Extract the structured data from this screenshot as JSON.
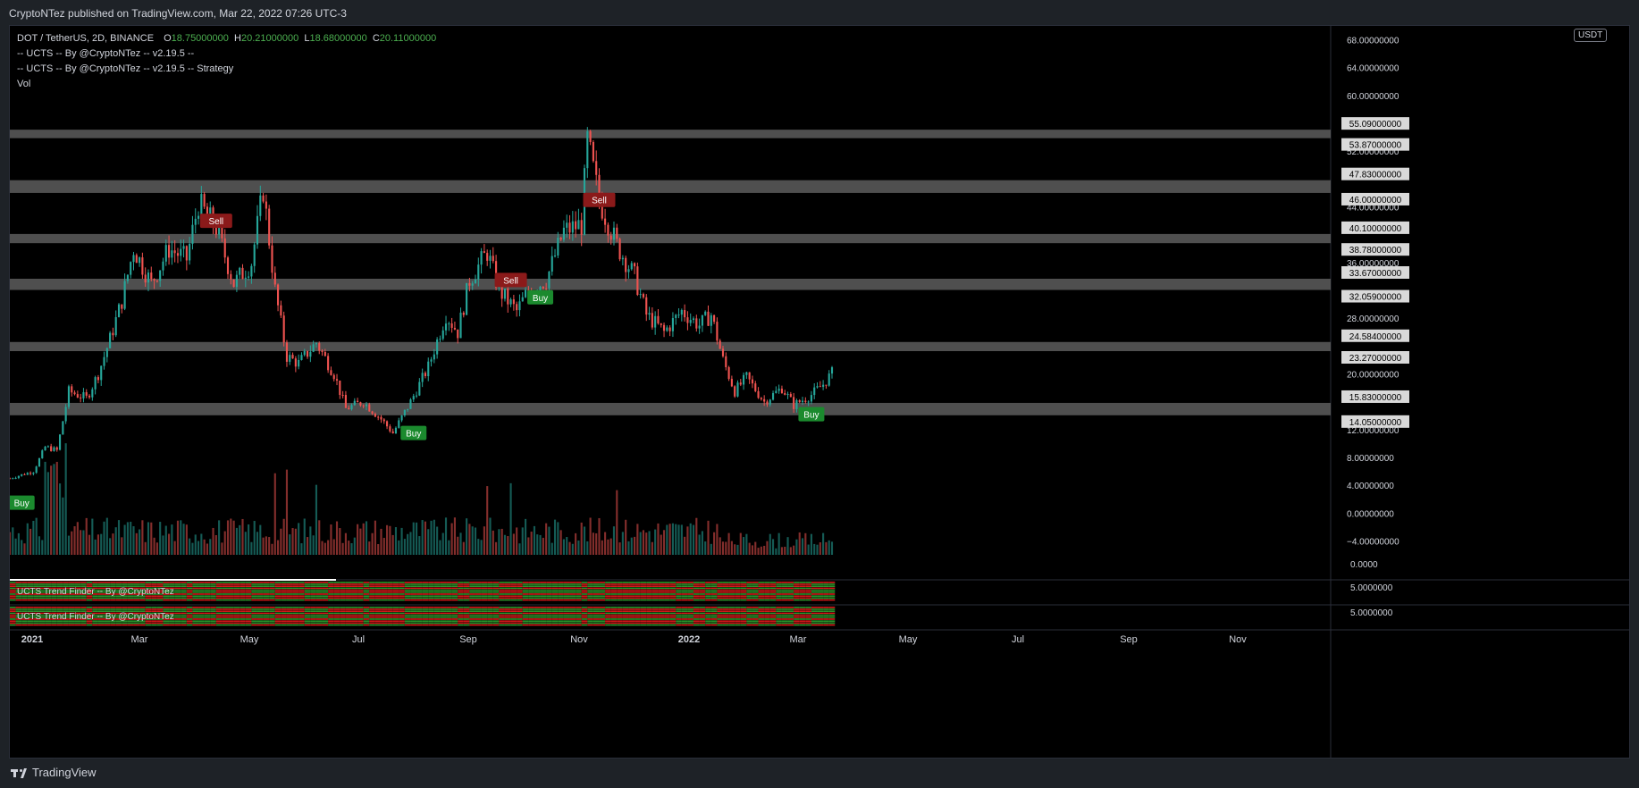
{
  "published_by": "CryptoNTez published on TradingView.com, Mar 22, 2022 07:26 UTC-3",
  "brand": "TradingView",
  "legend": {
    "symbol": "DOT / TetherUS, 2D, BINANCE",
    "o_label": "O",
    "o_value": "18.75000000",
    "h_label": "H",
    "h_value": "20.21000000",
    "l_label": "L",
    "l_value": "18.68000000",
    "c_label": "C",
    "c_value": "20.11000000",
    "indicator1": "-- UCTS -- By @CryptoNTez -- v2.19.5 --",
    "indicator2": "-- UCTS -- By @CryptoNTez -- v2.19.5 -- Strategy",
    "indicator3": "Vol"
  },
  "currency_badge": "USDT",
  "pane_labels": [
    "UCTS Trend Finder -- By @CryptoNTez",
    "UCTS Trend Finder -- By @CryptoNTez"
  ],
  "colors": {
    "up": "#26a69a",
    "down": "#ef5350",
    "zone": "#5d5d5d",
    "buy": "#1b8a2e",
    "sell": "#8b1a1a",
    "trend_green": "#2e9e2e",
    "trend_red": "#e01b1b"
  },
  "chart_data": {
    "type": "candlestick",
    "ylim": [
      -6,
      70
    ],
    "y_ticks": [
      "68.00000000",
      "64.00000000",
      "60.00000000",
      "52.00000000",
      "44.00000000",
      "36.00000000",
      "28.00000000",
      "20.00000000",
      "12.00000000",
      "8.00000000",
      "4.00000000",
      "0.00000000",
      "−4.00000000"
    ],
    "indicator_ticks": [
      "0.0000",
      "5.0000000",
      "5.0000000"
    ],
    "x_ticks": [
      "2021",
      "Mar",
      "May",
      "Jul",
      "Sep",
      "Nov",
      "2022",
      "Mar",
      "May",
      "Jul",
      "Sep",
      "Nov"
    ],
    "zones": [
      {
        "high": "55.09000000",
        "low": "53.87000000",
        "hv": 55.09,
        "lv": 53.87
      },
      {
        "high": "47.83000000",
        "low": "46.00000000",
        "hv": 47.83,
        "lv": 46.0
      },
      {
        "high": "40.10000000",
        "low": "38.78000000",
        "hv": 40.1,
        "lv": 38.78
      },
      {
        "high": "33.67000000",
        "low": "32.05900000",
        "hv": 33.67,
        "lv": 32.059
      },
      {
        "high": "24.58400000",
        "low": "23.27000000",
        "hv": 24.584,
        "lv": 23.27
      },
      {
        "high": "15.83000000",
        "low": "14.05000000",
        "hv": 15.83,
        "lv": 14.05
      }
    ],
    "signals": [
      {
        "label": "Buy",
        "type": "buy",
        "i": 4,
        "y": 1.5
      },
      {
        "label": "Sell",
        "type": "sell",
        "i": 70,
        "y": 42.0
      },
      {
        "label": "Buy",
        "type": "buy",
        "i": 137,
        "y": 11.5
      },
      {
        "label": "Sell",
        "type": "sell",
        "i": 170,
        "y": 33.5
      },
      {
        "label": "Buy",
        "type": "buy",
        "i": 180,
        "y": 31.0
      },
      {
        "label": "Sell",
        "type": "sell",
        "i": 200,
        "y": 45.0
      },
      {
        "label": "Buy",
        "type": "buy",
        "i": 272,
        "y": 14.2
      }
    ],
    "close_path": [
      [
        0,
        5.0
      ],
      [
        8,
        6.0
      ],
      [
        12,
        9.5
      ],
      [
        16,
        9.0
      ],
      [
        20,
        17.5
      ],
      [
        26,
        16.5
      ],
      [
        30,
        20.0
      ],
      [
        34,
        25.0
      ],
      [
        38,
        30.5
      ],
      [
        42,
        38.0
      ],
      [
        48,
        33.0
      ],
      [
        54,
        38.0
      ],
      [
        60,
        36.5
      ],
      [
        64,
        44.5
      ],
      [
        70,
        41.0
      ],
      [
        76,
        33.0
      ],
      [
        82,
        36.0
      ],
      [
        86,
        46.5
      ],
      [
        90,
        32.0
      ],
      [
        94,
        22.5
      ],
      [
        98,
        21.5
      ],
      [
        104,
        24.5
      ],
      [
        110,
        20.0
      ],
      [
        114,
        15.0
      ],
      [
        120,
        16.0
      ],
      [
        126,
        13.5
      ],
      [
        130,
        11.5
      ],
      [
        136,
        16.0
      ],
      [
        142,
        21.0
      ],
      [
        148,
        28.5
      ],
      [
        152,
        26.0
      ],
      [
        156,
        33.5
      ],
      [
        162,
        37.5
      ],
      [
        166,
        32.0
      ],
      [
        172,
        29.0
      ],
      [
        176,
        32.0
      ],
      [
        182,
        33.5
      ],
      [
        188,
        40.5
      ],
      [
        194,
        41.5
      ],
      [
        196,
        53.5
      ],
      [
        200,
        45.0
      ],
      [
        206,
        38.5
      ],
      [
        212,
        34.0
      ],
      [
        216,
        28.5
      ],
      [
        222,
        26.0
      ],
      [
        228,
        29.0
      ],
      [
        234,
        27.0
      ],
      [
        238,
        28.5
      ],
      [
        242,
        22.0
      ],
      [
        246,
        17.5
      ],
      [
        250,
        19.5
      ],
      [
        256,
        16.0
      ],
      [
        262,
        18.0
      ],
      [
        266,
        15.5
      ],
      [
        272,
        17.0
      ],
      [
        276,
        18.5
      ],
      [
        279,
        20.11
      ]
    ],
    "volume_hint": "volume bars at bottom of main pane, colored by candle direction"
  }
}
